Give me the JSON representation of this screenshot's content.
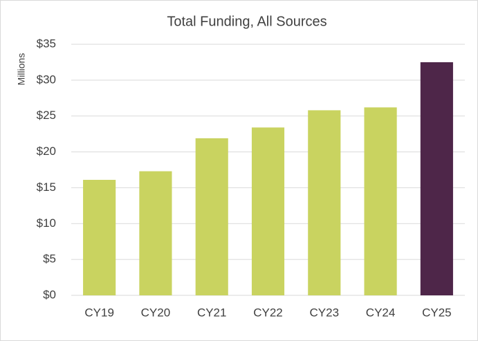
{
  "chart_data": {
    "type": "bar",
    "title": "Total Funding, All Sources",
    "y_label": "Millions",
    "categories": [
      "CY19",
      "CY20",
      "CY21",
      "CY22",
      "CY23",
      "CY24",
      "CY25"
    ],
    "values": [
      16.1,
      17.3,
      21.9,
      23.4,
      25.8,
      26.2,
      32.5
    ],
    "colors": [
      "#c9d360",
      "#c9d360",
      "#c9d360",
      "#c9d360",
      "#c9d360",
      "#c9d360",
      "#4e2649"
    ],
    "ylim": [
      0,
      35
    ],
    "yticks": [
      {
        "value": 0,
        "label": "$0"
      },
      {
        "value": 5,
        "label": "$5"
      },
      {
        "value": 10,
        "label": "$10"
      },
      {
        "value": 15,
        "label": "$15"
      },
      {
        "value": 20,
        "label": "$20"
      },
      {
        "value": 25,
        "label": "$25"
      },
      {
        "value": 30,
        "label": "$30"
      },
      {
        "value": 35,
        "label": "$35"
      }
    ],
    "grid": true
  }
}
